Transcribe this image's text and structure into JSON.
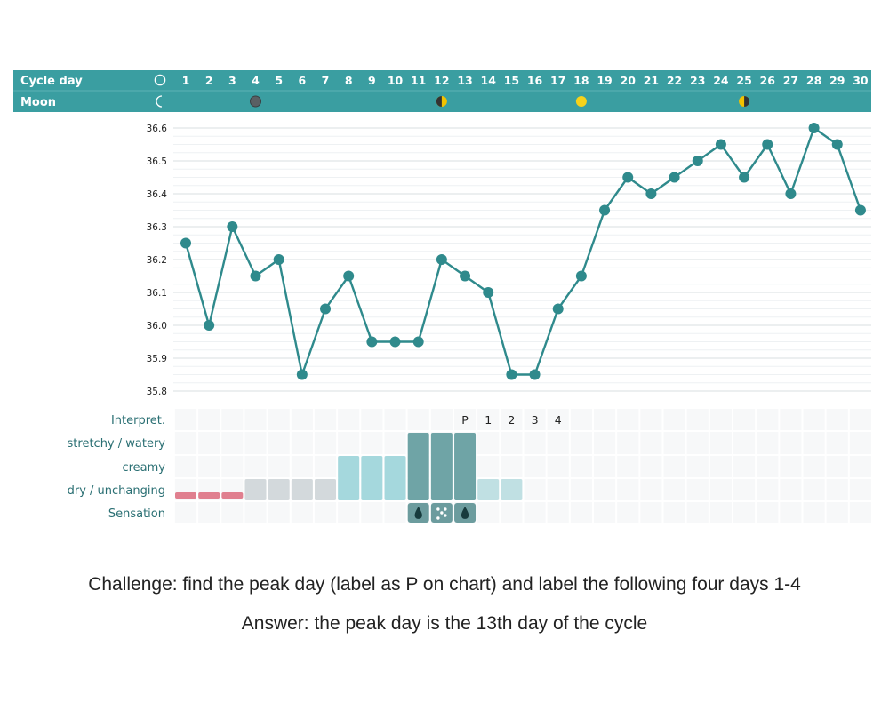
{
  "header": {
    "row1_label": "Cycle day",
    "row2_label": "Moon",
    "cycle_icon": "circle-outline-icon",
    "moon_icon": "crescent-moon-icon",
    "days": [
      "1",
      "2",
      "3",
      "4",
      "5",
      "6",
      "7",
      "8",
      "9",
      "10",
      "11",
      "12",
      "13",
      "14",
      "15",
      "16",
      "17",
      "18",
      "19",
      "20",
      "21",
      "22",
      "23",
      "24",
      "25",
      "26",
      "27",
      "28",
      "29",
      "30"
    ],
    "moon_phases": [
      {
        "day": 4,
        "phase": "new-moon-icon",
        "color": "#5a5f63"
      },
      {
        "day": 12,
        "phase": "first-quarter-moon-icon",
        "color": "#f2c200"
      },
      {
        "day": 18,
        "phase": "full-moon-icon",
        "color": "#f7d21a"
      },
      {
        "day": 25,
        "phase": "last-quarter-moon-icon",
        "color": "#f2c200"
      }
    ]
  },
  "colors": {
    "header_bg": "#3a9ea1",
    "line": "#2f8a8c",
    "dot": "#2f8a8c",
    "row_label": "#2a6f73",
    "menstruation": "#e07f8f",
    "dry": "#d3d9dc",
    "creamy": "#a5d8dd",
    "watery": "#6fa4a6",
    "after_peak": "#c0e0e3",
    "sensation": "#6c9c9e"
  },
  "chart_data": {
    "type": "line",
    "x": [
      1,
      2,
      3,
      4,
      5,
      6,
      7,
      8,
      9,
      10,
      11,
      12,
      13,
      14,
      15,
      16,
      17,
      18,
      19,
      20,
      21,
      22,
      23,
      24,
      25,
      26,
      27,
      28,
      29,
      30
    ],
    "values": [
      36.25,
      36.0,
      36.3,
      36.15,
      36.2,
      35.85,
      36.05,
      36.15,
      35.95,
      35.95,
      35.95,
      36.2,
      36.15,
      36.1,
      35.85,
      35.85,
      36.05,
      36.15,
      36.35,
      36.45,
      36.4,
      36.45,
      36.5,
      36.55,
      36.45,
      36.55,
      36.4,
      36.6,
      36.55,
      36.35
    ],
    "ylim": [
      35.8,
      36.6
    ],
    "y_ticks": [
      "36.6",
      "36.5",
      "36.4",
      "36.3",
      "36.2",
      "36.1",
      "36.0",
      "35.9",
      "35.8"
    ],
    "grid": true
  },
  "rows": {
    "interpret_label": "Interpret.",
    "watery_label": "stretchy / watery",
    "creamy_label": "creamy",
    "dry_label": "dry / unchanging",
    "sensation_label": "Sensation",
    "interpret_marks": [
      {
        "day": 13,
        "text": "P"
      },
      {
        "day": 14,
        "text": "1"
      },
      {
        "day": 15,
        "text": "2"
      },
      {
        "day": 16,
        "text": "3"
      },
      {
        "day": 17,
        "text": "4"
      }
    ],
    "menstruation_days": [
      1,
      2,
      3
    ],
    "mucus": [
      {
        "day": 4,
        "level": "dry"
      },
      {
        "day": 5,
        "level": "dry"
      },
      {
        "day": 6,
        "level": "dry"
      },
      {
        "day": 7,
        "level": "dry"
      },
      {
        "day": 8,
        "level": "creamy"
      },
      {
        "day": 9,
        "level": "creamy"
      },
      {
        "day": 10,
        "level": "creamy"
      },
      {
        "day": 11,
        "level": "watery"
      },
      {
        "day": 12,
        "level": "watery"
      },
      {
        "day": 13,
        "level": "watery"
      },
      {
        "day": 14,
        "level": "after"
      },
      {
        "day": 15,
        "level": "after"
      }
    ],
    "sensation_days": [
      {
        "day": 11,
        "icon": "drop-icon"
      },
      {
        "day": 12,
        "icon": "droplets-icon"
      },
      {
        "day": 13,
        "icon": "drop-icon"
      }
    ]
  },
  "captions": {
    "challenge": "Challenge: find the peak day (label as P on chart) and label the following four days 1-4",
    "answer": "Answer: the peak day is the 13th day of the cycle"
  }
}
